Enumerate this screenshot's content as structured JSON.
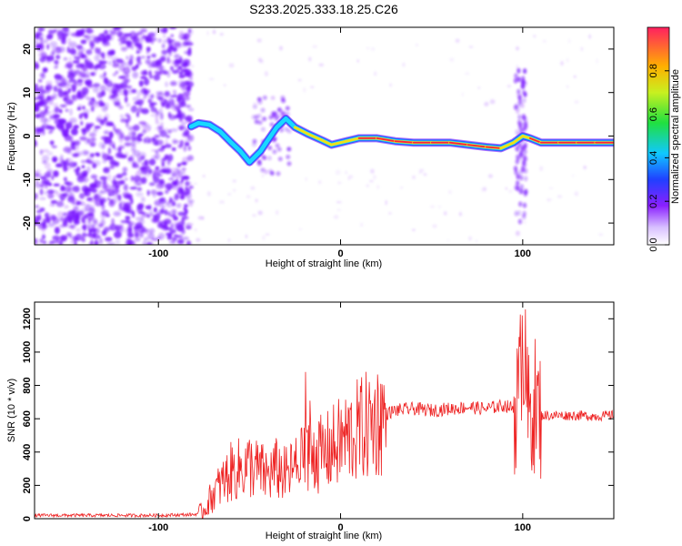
{
  "title": "S233.2025.333.18.25.C26",
  "chart_data": [
    {
      "type": "heatmap",
      "xlabel": "Height of straight line (km)",
      "ylabel": "Frequency (Hz)",
      "xlim": [
        -168,
        150
      ],
      "ylim": [
        -25,
        25
      ],
      "xticks": [
        -100,
        0,
        100
      ],
      "yticks": [
        -20,
        -10,
        0,
        10,
        20
      ],
      "colorbar": {
        "label": "Normalized spectral amplitude",
        "range": [
          0,
          1
        ],
        "ticks": [
          0.0,
          0.2,
          0.4,
          0.6,
          0.8
        ]
      },
      "colors": {
        "noise": "#7a18ff",
        "ridge_outer": "#2a60ff",
        "ridge_mid": "#18d9ff",
        "ridge_hot": "#f0e018",
        "ridge_peak": "#ff2040"
      },
      "ridge": [
        {
          "x": -82,
          "y": 2.2,
          "amp": 0.5
        },
        {
          "x": -78,
          "y": 3.0,
          "amp": 0.5
        },
        {
          "x": -72,
          "y": 2.6,
          "amp": 0.5
        },
        {
          "x": -66,
          "y": 1.0,
          "amp": 0.4
        },
        {
          "x": -60,
          "y": -1.5,
          "amp": 0.4
        },
        {
          "x": -55,
          "y": -3.5,
          "amp": 0.45
        },
        {
          "x": -50,
          "y": -6.0,
          "amp": 0.45
        },
        {
          "x": -44,
          "y": -3.5,
          "amp": 0.4
        },
        {
          "x": -40,
          "y": -1.0,
          "amp": 0.45
        },
        {
          "x": -35,
          "y": 2.0,
          "amp": 0.5
        },
        {
          "x": -30,
          "y": 4.0,
          "amp": 0.5
        },
        {
          "x": -25,
          "y": 2.0,
          "amp": 0.55
        },
        {
          "x": -18,
          "y": 0.5,
          "amp": 0.65
        },
        {
          "x": -10,
          "y": -1.0,
          "amp": 0.6
        },
        {
          "x": -5,
          "y": -2.0,
          "amp": 0.6
        },
        {
          "x": 0,
          "y": -1.5,
          "amp": 0.7
        },
        {
          "x": 10,
          "y": -0.5,
          "amp": 0.8
        },
        {
          "x": 20,
          "y": -0.5,
          "amp": 0.85
        },
        {
          "x": 30,
          "y": -1.2,
          "amp": 0.85
        },
        {
          "x": 40,
          "y": -1.5,
          "amp": 0.9
        },
        {
          "x": 50,
          "y": -1.5,
          "amp": 0.9
        },
        {
          "x": 60,
          "y": -1.5,
          "amp": 0.9
        },
        {
          "x": 70,
          "y": -2.0,
          "amp": 0.85
        },
        {
          "x": 80,
          "y": -2.5,
          "amp": 0.8
        },
        {
          "x": 88,
          "y": -2.8,
          "amp": 0.8
        },
        {
          "x": 95,
          "y": -1.5,
          "amp": 0.7
        },
        {
          "x": 100,
          "y": 0.0,
          "amp": 0.5
        },
        {
          "x": 104,
          "y": -0.5,
          "amp": 0.75
        },
        {
          "x": 110,
          "y": -1.5,
          "amp": 0.85
        },
        {
          "x": 120,
          "y": -1.5,
          "amp": 0.9
        },
        {
          "x": 130,
          "y": -1.5,
          "amp": 0.9
        },
        {
          "x": 140,
          "y": -1.5,
          "amp": 0.9
        },
        {
          "x": 150,
          "y": -1.5,
          "amp": 0.9
        }
      ]
    },
    {
      "type": "line",
      "xlabel": "Height of straight line (km)",
      "ylabel": "SNR (10 * v/v)",
      "xlim": [
        -168,
        150
      ],
      "ylim": [
        0,
        1300
      ],
      "xticks": [
        -100,
        0,
        100
      ],
      "yticks": [
        0,
        200,
        400,
        600,
        800,
        1000,
        1200
      ],
      "series": [
        {
          "color": "#ee2222",
          "x": [
            -168,
            -140,
            -100,
            -80,
            -75,
            -70,
            -60,
            -50,
            -40,
            -35,
            -30,
            -20,
            -18,
            -10,
            0,
            10,
            20,
            25,
            30,
            40,
            50,
            60,
            70,
            80,
            90,
            95,
            98,
            100,
            103,
            106,
            108,
            110,
            120,
            130,
            140,
            150
          ],
          "y": [
            20,
            20,
            20,
            25,
            50,
            150,
            280,
            320,
            260,
            300,
            260,
            350,
            420,
            380,
            460,
            530,
            590,
            630,
            650,
            660,
            650,
            660,
            670,
            660,
            680,
            660,
            720,
            1100,
            600,
            700,
            650,
            620,
            620,
            620,
            615,
            620
          ]
        }
      ]
    }
  ]
}
